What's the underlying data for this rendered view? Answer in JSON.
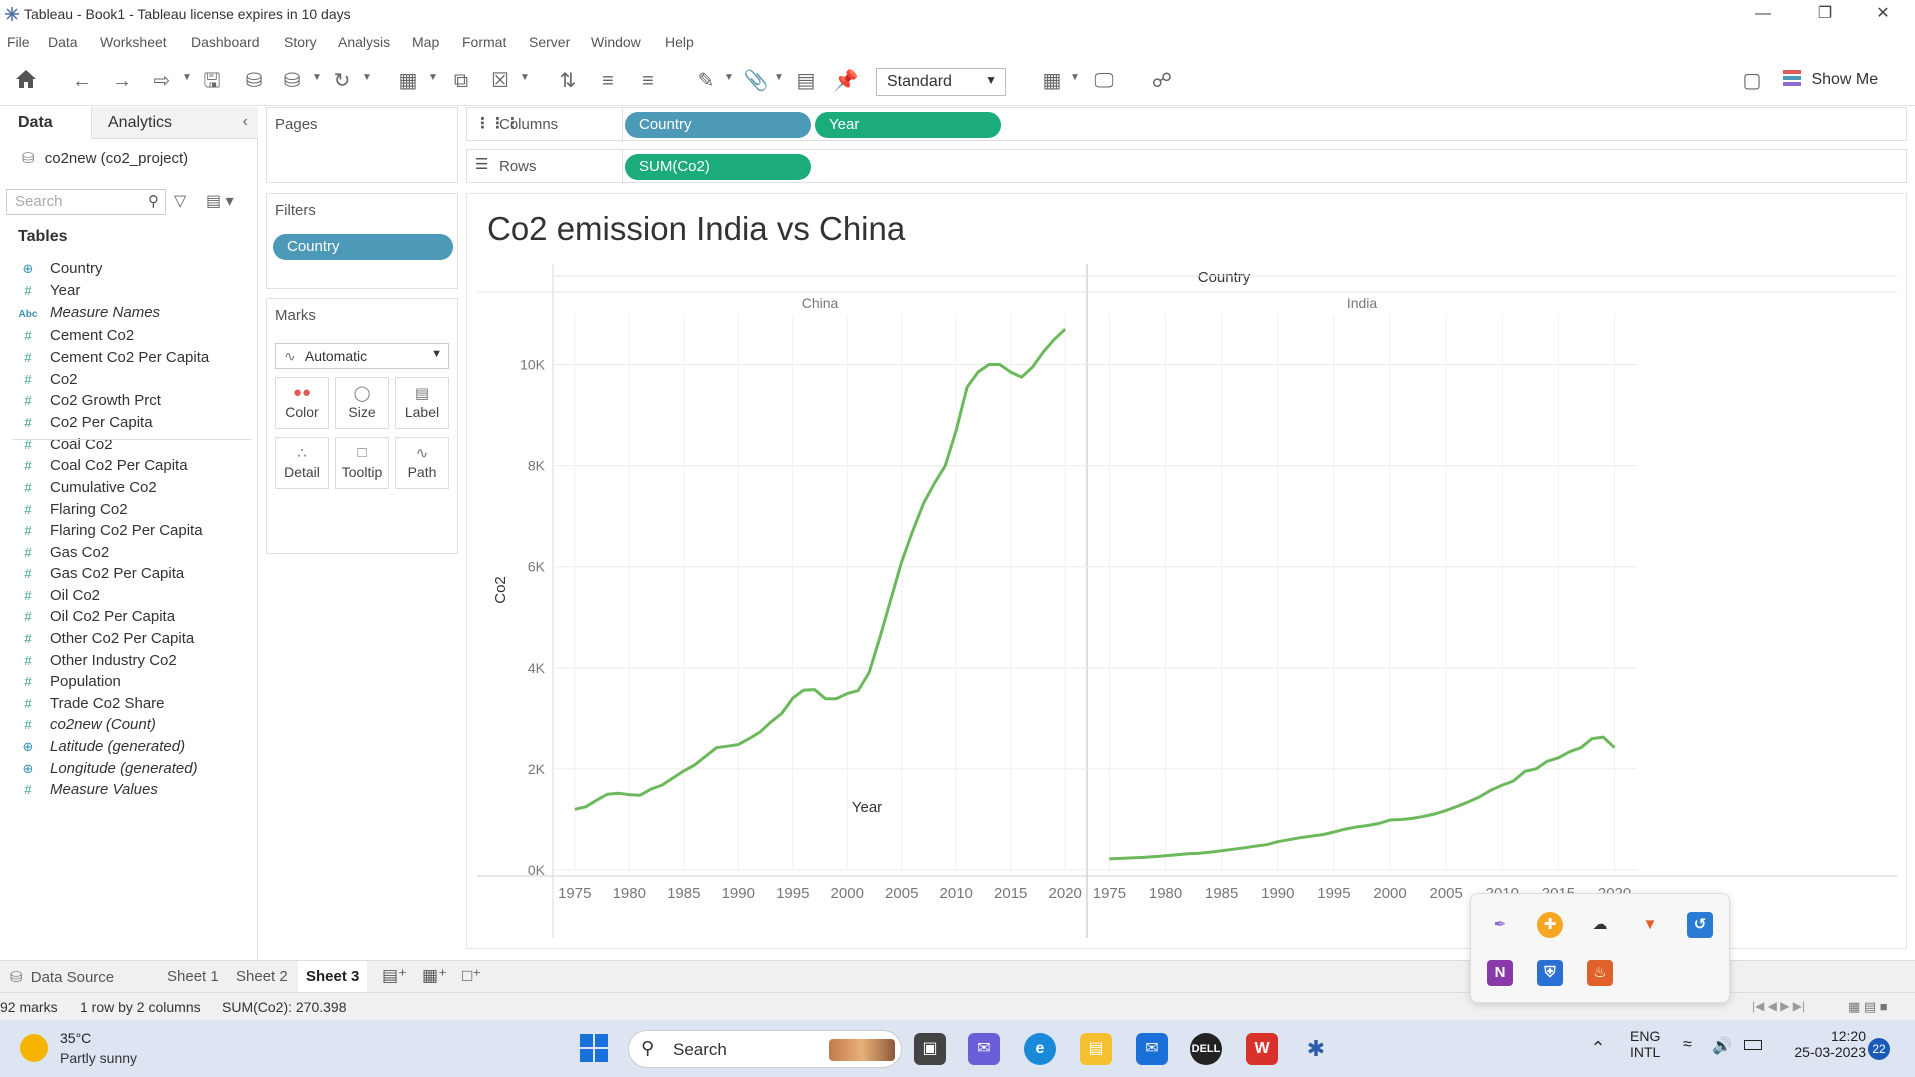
{
  "window": {
    "title": "Tableau - Book1 - Tableau license expires in 10 days",
    "controls": [
      "—",
      "❐",
      "✕"
    ]
  },
  "menu": [
    "File",
    "Data",
    "Worksheet",
    "Dashboard",
    "Story",
    "Analysis",
    "Map",
    "Format",
    "Server",
    "Window",
    "Help"
  ],
  "toolbar": {
    "fit_value": "Standard",
    "show_me_label": "Show Me"
  },
  "data_pane": {
    "tabs": [
      "Data",
      "Analytics"
    ],
    "datasource": "co2new (co2_project)",
    "search_placeholder": "Search",
    "tables_header": "Tables",
    "fields": [
      {
        "name": "Country",
        "type": "geo",
        "icon": "globe-icon"
      },
      {
        "name": "Year",
        "type": "measure",
        "icon": "hash-icon"
      },
      {
        "name": "Measure Names",
        "type": "abc",
        "icon": "abc-icon",
        "italic": true
      },
      {
        "name": "Cement Co2",
        "type": "measure",
        "icon": "hash-icon"
      },
      {
        "name": "Cement Co2 Per Capita",
        "type": "measure",
        "icon": "hash-icon"
      },
      {
        "name": "Co2",
        "type": "measure",
        "icon": "hash-icon"
      },
      {
        "name": "Co2 Growth Prct",
        "type": "measure",
        "icon": "hash-icon"
      },
      {
        "name": "Co2 Per Capita",
        "type": "measure",
        "icon": "hash-icon"
      },
      {
        "name": "Coal Co2",
        "type": "measure",
        "icon": "hash-icon"
      },
      {
        "name": "Coal Co2 Per Capita",
        "type": "measure",
        "icon": "hash-icon"
      },
      {
        "name": "Cumulative Co2",
        "type": "measure",
        "icon": "hash-icon"
      },
      {
        "name": "Flaring Co2",
        "type": "measure",
        "icon": "hash-icon"
      },
      {
        "name": "Flaring Co2 Per Capita",
        "type": "measure",
        "icon": "hash-icon"
      },
      {
        "name": "Gas Co2",
        "type": "measure",
        "icon": "hash-icon"
      },
      {
        "name": "Gas Co2 Per Capita",
        "type": "measure",
        "icon": "hash-icon"
      },
      {
        "name": "Oil Co2",
        "type": "measure",
        "icon": "hash-icon"
      },
      {
        "name": "Oil Co2 Per Capita",
        "type": "measure",
        "icon": "hash-icon"
      },
      {
        "name": "Other Co2 Per Capita",
        "type": "measure",
        "icon": "hash-icon"
      },
      {
        "name": "Other Industry Co2",
        "type": "measure",
        "icon": "hash-icon"
      },
      {
        "name": "Population",
        "type": "measure",
        "icon": "hash-icon"
      },
      {
        "name": "Trade Co2 Share",
        "type": "measure",
        "icon": "hash-icon"
      },
      {
        "name": "co2new (Count)",
        "type": "measure",
        "icon": "hash-icon",
        "italic": true
      },
      {
        "name": "Latitude (generated)",
        "type": "geo",
        "icon": "globe-icon",
        "italic": true
      },
      {
        "name": "Longitude (generated)",
        "type": "geo",
        "icon": "globe-icon",
        "italic": true
      },
      {
        "name": "Measure Values",
        "type": "measure",
        "icon": "hash-icon",
        "italic": true
      }
    ]
  },
  "shelves": {
    "pages_label": "Pages",
    "filters_label": "Filters",
    "filter_pill": "Country",
    "marks_label": "Marks",
    "mark_type": "Automatic",
    "mark_buttons": [
      "Color",
      "Size",
      "Label",
      "Detail",
      "Tooltip",
      "Path"
    ],
    "columns_label": "Columns",
    "rows_label": "Rows",
    "columns_pills": [
      "Country",
      "Year"
    ],
    "rows_pills": [
      "SUM(Co2)"
    ]
  },
  "viz": {
    "title": "Co2 emission India vs China",
    "header": "Country",
    "x_axis_title": "Year",
    "y_axis_title": "Co2"
  },
  "chart_data": {
    "type": "line",
    "title": "Co2 emission India vs China",
    "xlabel": "Year",
    "ylabel": "Co2",
    "panes": [
      "China",
      "India"
    ],
    "ylim": [
      0,
      11000
    ],
    "yticks": [
      0,
      2000,
      4000,
      6000,
      8000,
      10000
    ],
    "ytick_labels": [
      "0K",
      "2K",
      "4K",
      "6K",
      "8K",
      "10K"
    ],
    "xlim": [
      1973,
      2022
    ],
    "xticks": [
      1975,
      1980,
      1985,
      1990,
      1995,
      2000,
      2005,
      2010,
      2015,
      2020
    ],
    "grid": true,
    "line_color": "#6cb85c",
    "series": [
      {
        "name": "China",
        "x": [
          1975,
          1976,
          1977,
          1978,
          1979,
          1980,
          1981,
          1982,
          1983,
          1984,
          1985,
          1986,
          1987,
          1988,
          1989,
          1990,
          1991,
          1992,
          1993,
          1994,
          1995,
          1996,
          1997,
          1998,
          1999,
          2000,
          2001,
          2002,
          2003,
          2004,
          2005,
          2006,
          2007,
          2008,
          2009,
          2010,
          2011,
          2012,
          2013,
          2014,
          2015,
          2016,
          2017,
          2018,
          2019,
          2020
        ],
        "values": [
          1200,
          1250,
          1380,
          1500,
          1520,
          1490,
          1480,
          1600,
          1680,
          1820,
          1960,
          2080,
          2250,
          2420,
          2450,
          2480,
          2600,
          2730,
          2930,
          3100,
          3400,
          3560,
          3570,
          3390,
          3390,
          3490,
          3550,
          3900,
          4600,
          5350,
          6100,
          6700,
          7250,
          7650,
          8000,
          8700,
          9550,
          9850,
          10000,
          10000,
          9850,
          9750,
          9950,
          10250,
          10500,
          10700
        ]
      },
      {
        "name": "India",
        "x": [
          1975,
          1976,
          1977,
          1978,
          1979,
          1980,
          1981,
          1982,
          1983,
          1984,
          1985,
          1986,
          1987,
          1988,
          1989,
          1990,
          1991,
          1992,
          1993,
          1994,
          1995,
          1996,
          1997,
          1998,
          1999,
          2000,
          2001,
          2002,
          2003,
          2004,
          2005,
          2006,
          2007,
          2008,
          2009,
          2010,
          2011,
          2012,
          2013,
          2014,
          2015,
          2016,
          2017,
          2018,
          2019,
          2020
        ],
        "values": [
          220,
          230,
          240,
          250,
          265,
          280,
          300,
          320,
          330,
          355,
          380,
          410,
          440,
          470,
          500,
          560,
          600,
          640,
          670,
          700,
          750,
          810,
          850,
          880,
          920,
          990,
          1000,
          1020,
          1060,
          1110,
          1180,
          1260,
          1350,
          1450,
          1580,
          1680,
          1760,
          1950,
          2000,
          2150,
          2220,
          2340,
          2420,
          2600,
          2630,
          2420
        ]
      }
    ]
  },
  "sheet_tabs": [
    "Data Source",
    "Sheet 1",
    "Sheet 2",
    "Sheet 3"
  ],
  "status": {
    "marks": "92 marks",
    "rows_cols": "1 row by 2 columns",
    "sum": "SUM(Co2): 270.398"
  },
  "taskbar": {
    "weather_temp": "35°C",
    "weather_desc": "Partly sunny",
    "search_label": "Search",
    "lang_top": "ENG",
    "lang_bottom": "INTL",
    "time": "12:20",
    "date": "25-03-2023",
    "notifications": "22"
  }
}
